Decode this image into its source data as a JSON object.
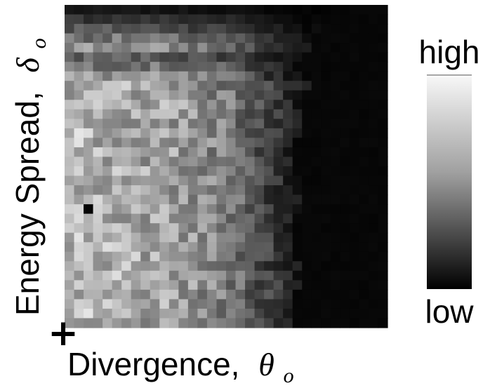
{
  "chart_data": {
    "type": "heatmap",
    "title": "",
    "xlabel": "Divergence,",
    "xlabel_symbol": "θ",
    "xlabel_subscript": "o",
    "ylabel": "Energy Spread,",
    "ylabel_symbol": "δ",
    "ylabel_subscript": "o",
    "colorbar": {
      "high_label": "high",
      "low_label": "low",
      "colormap": "gray"
    },
    "origin_marker": "+",
    "columns": 34,
    "rows": 34,
    "value_scale": [
      0,
      1
    ],
    "column_profile": [
      0.7,
      0.71,
      0.7,
      0.69,
      0.68,
      0.68,
      0.67,
      0.66,
      0.65,
      0.64,
      0.63,
      0.61,
      0.6,
      0.58,
      0.56,
      0.53,
      0.5,
      0.47,
      0.43,
      0.36,
      0.3,
      0.25,
      0.21,
      0.17,
      0.14,
      0.12,
      0.1,
      0.08,
      0.06,
      0.05,
      0.04,
      0.03,
      0.03,
      0.02
    ],
    "edge_columns": [
      28,
      28,
      27,
      26,
      26,
      26,
      25,
      25,
      26,
      26,
      26,
      26,
      25,
      25,
      24,
      24,
      24,
      24,
      25,
      25,
      25,
      25,
      24,
      24,
      24,
      24,
      24,
      25,
      25,
      25,
      24,
      24,
      24,
      24
    ],
    "top_dark_rows": 5,
    "noise_amplitude": 0.18,
    "random_seed": 7,
    "dark_spot": {
      "column": 2,
      "row": 21
    }
  },
  "colors": {
    "background": "#ffffff",
    "text": "#000000",
    "colorbar_rule": "#888888"
  }
}
